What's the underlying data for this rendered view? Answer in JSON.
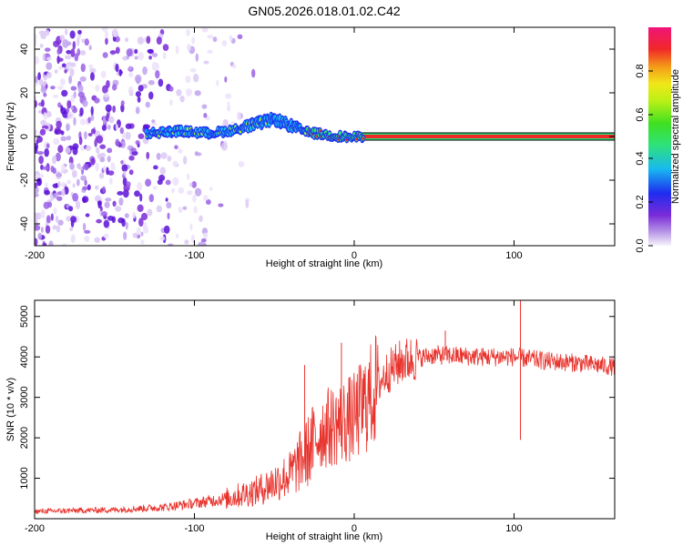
{
  "title": "GN05.2026.018.01.02.C42",
  "chart_data": [
    {
      "type": "heatmap",
      "name": "spectrogram",
      "xlabel": "Height of straight line (km)",
      "ylabel": "Frequency (Hz)",
      "xlim": [
        -200,
        163
      ],
      "ylim": [
        -50,
        50
      ],
      "xticks": [
        -200,
        -100,
        0,
        100
      ],
      "yticks": [
        -40,
        -20,
        0,
        20,
        40
      ],
      "colorbar": {
        "label": "Normalized spectral amplitude",
        "ticks": [
          0.0,
          0.2,
          0.4,
          0.6,
          0.8
        ],
        "range": [
          0,
          1
        ]
      },
      "ridge": {
        "start_km": -130,
        "end_km": 163,
        "points": [
          {
            "x": -130,
            "y": 1.5
          },
          {
            "x": -110,
            "y": 2.5
          },
          {
            "x": -90,
            "y": 1.5
          },
          {
            "x": -75,
            "y": 3
          },
          {
            "x": -60,
            "y": 6
          },
          {
            "x": -50,
            "y": 8
          },
          {
            "x": -40,
            "y": 5
          },
          {
            "x": -30,
            "y": 2
          },
          {
            "x": -15,
            "y": 0.5
          },
          {
            "x": 0,
            "y": -0.5
          },
          {
            "x": 5,
            "y": 0
          },
          {
            "x": 163,
            "y": 0
          }
        ]
      },
      "noise_region_km": [
        -200,
        -80
      ]
    },
    {
      "type": "line",
      "name": "snr",
      "xlabel": "Height of straight line (km)",
      "ylabel": "SNR (10 * v/v)",
      "xlim": [
        -200,
        163
      ],
      "ylim": [
        0,
        5400
      ],
      "xticks": [
        -200,
        -100,
        0,
        100
      ],
      "yticks": [
        1000,
        2000,
        3000,
        4000,
        5000
      ],
      "color": "#e8332d",
      "trend": [
        {
          "x": -200,
          "y": 180
        },
        {
          "x": -150,
          "y": 220
        },
        {
          "x": -120,
          "y": 280
        },
        {
          "x": -100,
          "y": 380
        },
        {
          "x": -80,
          "y": 500
        },
        {
          "x": -60,
          "y": 700
        },
        {
          "x": -40,
          "y": 1100
        },
        {
          "x": -30,
          "y": 1600
        },
        {
          "x": -20,
          "y": 2200
        },
        {
          "x": 0,
          "y": 2500
        },
        {
          "x": 10,
          "y": 3000
        },
        {
          "x": 20,
          "y": 3600
        },
        {
          "x": 30,
          "y": 3900
        },
        {
          "x": 50,
          "y": 4050
        },
        {
          "x": 80,
          "y": 4000
        },
        {
          "x": 100,
          "y": 4000
        },
        {
          "x": 120,
          "y": 3900
        },
        {
          "x": 140,
          "y": 3850
        },
        {
          "x": 163,
          "y": 3750
        }
      ],
      "annotations": [
        {
          "x": -31,
          "y": 3800
        },
        {
          "x": -8,
          "y": 4350
        },
        {
          "x": 57,
          "y": 4650
        },
        {
          "x": 104,
          "y": 5400
        },
        {
          "x": 104,
          "y": 1950
        }
      ]
    }
  ]
}
